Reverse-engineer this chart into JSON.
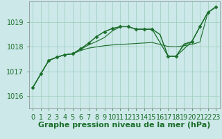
{
  "xlabel": "Graphe pression niveau de la mer (hPa)",
  "background_color": "#cce8e8",
  "grid_color": "#99ccbb",
  "line_color": "#1a6e2a",
  "xlim": [
    -0.5,
    23.5
  ],
  "ylim": [
    1015.5,
    1019.85
  ],
  "yticks": [
    1016,
    1017,
    1018,
    1019
  ],
  "xticks": [
    0,
    1,
    2,
    3,
    4,
    5,
    6,
    7,
    8,
    9,
    10,
    11,
    12,
    13,
    14,
    15,
    16,
    17,
    18,
    19,
    20,
    21,
    22,
    23
  ],
  "series1_x": [
    0,
    1,
    2,
    3,
    4,
    5,
    6,
    7,
    8,
    9,
    10,
    11,
    12,
    13,
    14,
    15,
    16,
    17,
    18,
    19,
    20,
    21,
    22,
    23
  ],
  "series1_y": [
    1016.35,
    1016.9,
    1017.45,
    1017.58,
    1017.68,
    1017.72,
    1017.85,
    1017.95,
    1018.0,
    1018.05,
    1018.08,
    1018.1,
    1018.12,
    1018.14,
    1018.16,
    1018.18,
    1018.1,
    1018.02,
    1018.0,
    1018.05,
    1018.1,
    1018.2,
    1019.4,
    1019.62
  ],
  "series2_x": [
    0,
    1,
    2,
    3,
    4,
    5,
    6,
    7,
    8,
    9,
    10,
    11,
    12,
    13,
    14,
    15,
    16,
    17,
    18,
    19,
    20,
    21,
    22,
    23
  ],
  "series2_y": [
    1016.35,
    1016.9,
    1017.45,
    1017.58,
    1017.68,
    1017.72,
    1017.9,
    1018.08,
    1018.22,
    1018.38,
    1018.65,
    1018.82,
    1018.82,
    1018.72,
    1018.72,
    1018.72,
    1018.5,
    1017.62,
    1017.62,
    1018.08,
    1018.22,
    1018.82,
    1019.4,
    1019.62
  ],
  "series3_x": [
    0,
    1,
    2,
    3,
    4,
    5,
    6,
    7,
    8,
    9,
    10,
    11,
    12,
    13,
    14,
    15,
    16,
    17,
    18,
    19,
    20,
    21,
    22,
    23
  ],
  "series3_y": [
    1016.35,
    1016.9,
    1017.45,
    1017.58,
    1017.68,
    1017.72,
    1017.92,
    1018.15,
    1018.42,
    1018.62,
    1018.75,
    1018.82,
    1018.82,
    1018.72,
    1018.72,
    1018.72,
    1018.5,
    1017.62,
    1017.62,
    1018.12,
    1018.22,
    1018.82,
    1019.4,
    1019.62
  ],
  "marker_x": [
    0,
    1,
    2,
    3,
    4,
    5,
    6,
    7,
    8,
    9,
    10,
    11,
    12,
    13,
    14,
    15,
    17,
    18,
    20,
    21,
    22,
    23
  ],
  "marker_y": [
    1016.35,
    1016.9,
    1017.45,
    1017.58,
    1017.68,
    1017.72,
    1017.92,
    1018.15,
    1018.42,
    1018.62,
    1018.75,
    1018.82,
    1018.82,
    1018.72,
    1018.72,
    1018.72,
    1017.62,
    1017.62,
    1018.22,
    1018.82,
    1019.4,
    1019.62
  ],
  "xlabel_fontsize": 8,
  "tick_fontsize": 7,
  "ytick_fontsize": 7
}
